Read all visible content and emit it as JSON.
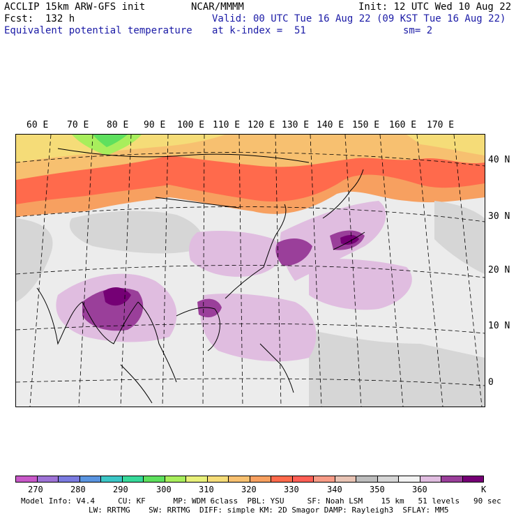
{
  "header": {
    "model": "ACCLIP 15km ARW-GFS init",
    "forecast": "Fcst:  132 h",
    "field": "Equivalent potential temperature",
    "center": "NCAR/MMMM",
    "valid": "Valid: 00 UTC Tue 16 Aug 22 (09 KST Tue 16 Aug 22)",
    "level": "at k-index =  51",
    "init": "Init: 12 UTC Wed 10 Aug 22",
    "smoothing": "sm= 2"
  },
  "map": {
    "lon_labels": [
      "60 E",
      "70 E",
      "80 E",
      "90 E",
      "100 E",
      "110 E",
      "120 E",
      "130 E",
      "140 E",
      "150 E",
      "160 E",
      "170 E"
    ],
    "lat_labels": [
      "40 N",
      "30 N",
      "20 N",
      "10 N",
      "0"
    ]
  },
  "colorbar": {
    "unit": "K",
    "tick_labels": [
      "270",
      "280",
      "290",
      "300",
      "310",
      "320",
      "330",
      "340",
      "350",
      "360"
    ],
    "colors": [
      "#c859c8",
      "#9e73d6",
      "#7b7be0",
      "#5a94e0",
      "#3cc6c6",
      "#37d99a",
      "#5ee05e",
      "#a8ee5c",
      "#e8f07a",
      "#f5dc78",
      "#f7c070",
      "#f7a060",
      "#ff6a4c",
      "#ff5f55",
      "#f79b86",
      "#e8c3b4",
      "#bdbdbd",
      "#d6d6d6",
      "#f2f2f2",
      "#e0bde0",
      "#9a3f9a",
      "#750075"
    ]
  },
  "footer": {
    "line1": "Model Info: V4.4     CU: KF      MP: WDM 6class  PBL: YSU     SF: Noah LSM    15 km   51 levels   90 sec",
    "line2": "LW: RRTMG    SW: RRTMG  DIFF: simple KM: 2D Smagor DAMP: Rayleigh3  SFLAY: MM5"
  }
}
